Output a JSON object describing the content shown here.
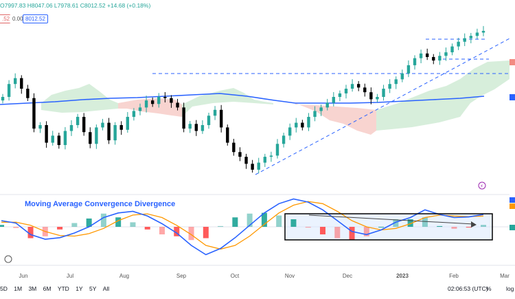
{
  "header": {
    "ohlc_text": "O7997.83 H8047.06 L7978.61 C8012.52 +14.68 (+0.18%)",
    "pill_left": ".52",
    "pill_zero": "0.00",
    "pill_right": "8012.52"
  },
  "macd_title": "Moving Average Convergence Divergence",
  "toolbar": {
    "ranges": [
      "5D",
      "1M",
      "3M",
      "6M",
      "YTD",
      "1Y",
      "5Y",
      "All"
    ],
    "clock": "02:06:53 (UTC)",
    "percent_label": "%",
    "log_label": "log"
  },
  "colors": {
    "up": "#26a69a",
    "down": "#000000",
    "cloud_bull": "#d7eedb",
    "cloud_bear": "#f8d4d0",
    "ma_line": "#2962ff",
    "macd_line": "#2962ff",
    "signal_line": "#ff9800",
    "trendline": "#2962ff",
    "hist_up": "#26a69a",
    "hist_down": "#ff5252"
  },
  "chart_data": {
    "type": "candlestick",
    "x_tick_labels": [
      "Jun",
      "Jul",
      "Aug",
      "Sep",
      "Oct",
      "Nov",
      "Dec",
      "2023",
      "Feb",
      "Mar"
    ],
    "price_closes": [
      7450,
      7560,
      7610,
      7520,
      7440,
      7180,
      7210,
      7060,
      7120,
      7040,
      7160,
      7210,
      7280,
      7150,
      7050,
      7190,
      7230,
      7080,
      7210,
      7170,
      7280,
      7330,
      7360,
      7420,
      7390,
      7450,
      7440,
      7400,
      7360,
      7180,
      7220,
      7160,
      7210,
      7290,
      7340,
      7190,
      7060,
      6980,
      6940,
      6880,
      6830,
      6890,
      6940,
      6950,
      7050,
      7120,
      7190,
      7230,
      7190,
      7280,
      7330,
      7360,
      7400,
      7450,
      7480,
      7520,
      7560,
      7530,
      7490,
      7430,
      7450,
      7520,
      7560,
      7600,
      7650,
      7720,
      7780,
      7820,
      7790,
      7760,
      7800,
      7830,
      7880,
      7920,
      7950,
      7970,
      7998,
      8012.52
    ],
    "macd_title": "Moving Average Convergence Divergence",
    "macd_series": [
      {
        "name": "MACD",
        "values": [
          20,
          12,
          -25,
          -40,
          -35,
          -20,
          0,
          30,
          45,
          50,
          35,
          10,
          -20,
          -60,
          -90,
          -70,
          -35,
          5,
          45,
          75,
          90,
          80,
          55,
          20,
          -15,
          -25,
          -10,
          15,
          30,
          55,
          40,
          30,
          32,
          40
        ]
      },
      {
        "name": "Signal",
        "values": [
          15,
          15,
          5,
          -15,
          -28,
          -30,
          -22,
          -5,
          20,
          38,
          42,
          30,
          5,
          -25,
          -60,
          -72,
          -60,
          -30,
          8,
          45,
          70,
          82,
          75,
          50,
          20,
          0,
          -10,
          -5,
          10,
          30,
          38,
          35,
          33,
          35
        ]
      },
      {
        "name": "Histogram",
        "values": [
          5,
          -3,
          -30,
          -25,
          -7,
          10,
          22,
          35,
          25,
          12,
          -7,
          -20,
          -25,
          -35,
          -30,
          2,
          25,
          35,
          37,
          30,
          20,
          -2,
          -20,
          -30,
          -35,
          -25,
          0,
          20,
          20,
          25,
          2,
          -5,
          -1,
          5
        ]
      }
    ],
    "annotations": [
      "dashed horizontal resistance line",
      "rising dashed trendline",
      "rectangle highlighting MACD divergence",
      "arrow within MACD panel"
    ]
  }
}
